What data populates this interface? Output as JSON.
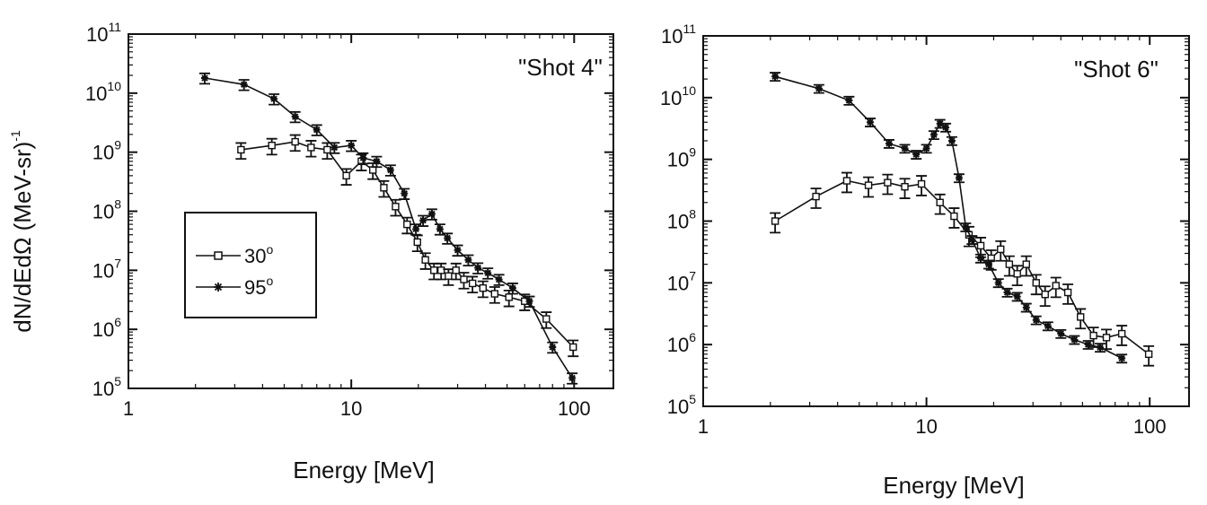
{
  "chart_data": [
    {
      "type": "line",
      "title": "\"Shot 4\"",
      "xlabel": "Energy  [MeV]",
      "ylabel": "dN/dEdΩ  (MeV-sr)",
      "ylabel_exp": "-1",
      "x_scale": "log",
      "y_scale": "log",
      "xlim": [
        1,
        150
      ],
      "ylim": [
        100000,
        100000000000
      ],
      "x_ticks": [
        {
          "value": 1,
          "label": "1"
        },
        {
          "value": 10,
          "label": "10"
        },
        {
          "value": 100,
          "label": "100"
        }
      ],
      "y_ticks": [
        {
          "value": 100000,
          "base": "10",
          "exp": "5"
        },
        {
          "value": 1000000,
          "base": "10",
          "exp": "6"
        },
        {
          "value": 10000000,
          "base": "10",
          "exp": "7"
        },
        {
          "value": 100000000,
          "base": "10",
          "exp": "8"
        },
        {
          "value": 1000000000,
          "base": "10",
          "exp": "9"
        },
        {
          "value": 10000000000,
          "base": "10",
          "exp": "10"
        },
        {
          "value": 100000000000,
          "base": "10",
          "exp": "11"
        }
      ],
      "legend": {
        "placement": "left-middle",
        "entries": [
          {
            "label": "30",
            "unit": "o",
            "marker": "square"
          },
          {
            "label": "95",
            "unit": "o",
            "marker": "star"
          }
        ]
      },
      "grid": false,
      "series": [
        {
          "name": "30°",
          "marker": "square",
          "error_frac": 0.3,
          "x": [
            3.2,
            4.4,
            5.6,
            6.6,
            7.8,
            9.5,
            11.1,
            12.5,
            14.0,
            15.8,
            17.8,
            19.8,
            21.5,
            23.5,
            25.3,
            27.3,
            29.5,
            32.0,
            35.0,
            39.0,
            44.0,
            51.0,
            60.0,
            75.0,
            99.0
          ],
          "y": [
            1100000000,
            1300000000,
            1500000000,
            1200000000,
            1100000000,
            400000000,
            700000000,
            500000000,
            250000000,
            120000000,
            60000000,
            30000000,
            15000000,
            10000000,
            10000000,
            8000000,
            10000000,
            7000000,
            6000000,
            5000000,
            4000000,
            3500000,
            3000000,
            1500000,
            500000
          ]
        },
        {
          "name": "95°",
          "marker": "star",
          "error_frac": 0.2,
          "x": [
            2.2,
            3.3,
            4.5,
            5.6,
            7.0,
            8.4,
            10.0,
            11.3,
            13.0,
            15.0,
            17.3,
            19.5,
            21.0,
            23.0,
            25.0,
            27.0,
            30.0,
            33.5,
            37.0,
            41.0,
            46.0,
            53.0,
            63.0,
            80.0,
            98.0
          ],
          "y": [
            18000000000,
            14000000000,
            8000000000,
            4000000000,
            2400000000,
            1200000000,
            1300000000,
            800000000,
            700000000,
            500000000,
            200000000,
            50000000,
            70000000,
            90000000,
            50000000,
            35000000,
            22000000,
            15000000,
            11000000,
            9000000,
            7000000,
            5000000,
            3000000,
            500000,
            150000
          ]
        }
      ]
    },
    {
      "type": "line",
      "title": "\"Shot 6\"",
      "xlabel": "Energy  [MeV]",
      "ylabel": "",
      "x_scale": "log",
      "y_scale": "log",
      "xlim": [
        1,
        150
      ],
      "ylim": [
        100000,
        100000000000
      ],
      "x_ticks": [
        {
          "value": 1,
          "label": "1"
        },
        {
          "value": 10,
          "label": "10"
        },
        {
          "value": 100,
          "label": "100"
        }
      ],
      "y_ticks": [
        {
          "value": 100000,
          "base": "10",
          "exp": "5"
        },
        {
          "value": 1000000,
          "base": "10",
          "exp": "6"
        },
        {
          "value": 10000000,
          "base": "10",
          "exp": "7"
        },
        {
          "value": 100000000,
          "base": "10",
          "exp": "8"
        },
        {
          "value": 1000000000,
          "base": "10",
          "exp": "9"
        },
        {
          "value": 10000000000,
          "base": "10",
          "exp": "10"
        },
        {
          "value": 100000000000,
          "base": "10",
          "exp": "11"
        }
      ],
      "grid": false,
      "series": [
        {
          "name": "30°",
          "marker": "square",
          "error_frac": 0.35,
          "x": [
            2.1,
            3.2,
            4.4,
            5.5,
            6.7,
            8.0,
            9.5,
            11.5,
            13.3,
            15.5,
            17.5,
            19.5,
            21.5,
            23.5,
            25.5,
            28.0,
            31.0,
            34.0,
            38.0,
            43.0,
            49.0,
            56.0,
            64.0,
            75.0,
            99.0
          ],
          "y": [
            100000000,
            250000000,
            450000000,
            380000000,
            420000000,
            360000000,
            400000000,
            200000000,
            120000000,
            60000000,
            40000000,
            25000000,
            35000000,
            20000000,
            14000000,
            20000000,
            10000000,
            6500000,
            9000000,
            7000000,
            2800000,
            1400000,
            1300000,
            1500000,
            700000
          ]
        },
        {
          "name": "95°",
          "marker": "star",
          "error_frac": 0.15,
          "x": [
            2.1,
            3.3,
            4.5,
            5.6,
            6.8,
            8.0,
            9.0,
            10.0,
            10.8,
            11.5,
            12.2,
            13.0,
            14.0,
            15.0,
            16.0,
            17.5,
            19.0,
            21.0,
            23.0,
            25.5,
            28.0,
            31.0,
            35.0,
            40.0,
            46.0,
            53.0,
            60.0,
            75.0
          ],
          "y": [
            22000000000,
            14000000000,
            9000000000,
            4000000000,
            1800000000,
            1500000000,
            1200000000,
            1500000000,
            2500000000,
            3800000000,
            3300000000,
            2000000000,
            500000000,
            80000000,
            50000000,
            25000000,
            20000000,
            10000000,
            7000000,
            6000000,
            4000000,
            2500000,
            2000000,
            1500000,
            1200000,
            1000000,
            900000,
            600000
          ]
        }
      ]
    }
  ]
}
